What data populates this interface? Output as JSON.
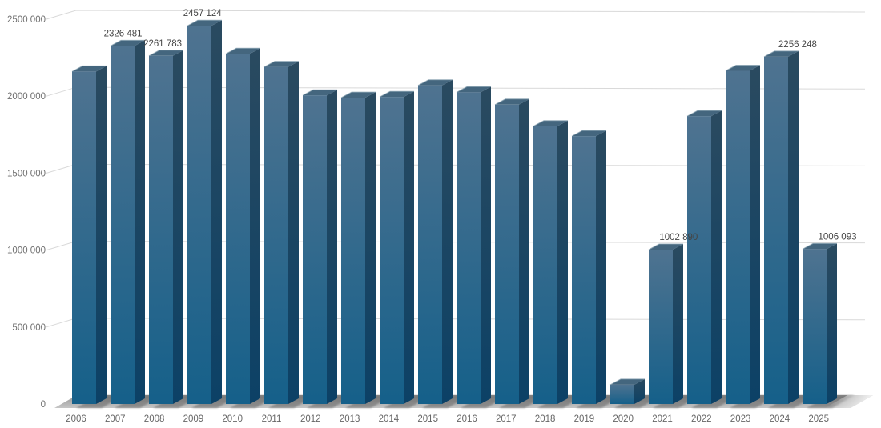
{
  "chart_data": {
    "type": "bar",
    "style": "3d-column",
    "title": "",
    "xlabel": "",
    "ylabel": "",
    "legend": "none",
    "grid": true,
    "categories": [
      "2006",
      "2007",
      "2008",
      "2009",
      "2010",
      "2011",
      "2012",
      "2013",
      "2014",
      "2015",
      "2016",
      "2017",
      "2018",
      "2019",
      "2020",
      "2021",
      "2022",
      "2023",
      "2024",
      "2025"
    ],
    "values": [
      2160000,
      2326481,
      2261783,
      2457124,
      2275000,
      2190000,
      2005000,
      1990000,
      1995000,
      2070000,
      2025000,
      1945000,
      1805000,
      1740000,
      125000,
      1002890,
      1870000,
      2165000,
      2256248,
      1006093
    ],
    "value_labels": [
      "",
      "2326 481",
      "2261 783",
      "2457 124",
      "",
      "",
      "",
      "",
      "",
      "",
      "",
      "",
      "",
      "",
      "",
      "1002 890",
      "",
      "",
      "2256 248",
      "1006 093"
    ],
    "ylim": [
      0,
      2500000
    ],
    "ytick_values": [
      0,
      500000,
      1000000,
      1500000,
      2000000,
      2500000
    ],
    "ytick_labels": [
      "0",
      "500 000",
      "1000 000",
      "1500 000",
      "2000 000",
      "2500 000"
    ],
    "colors": {
      "background": "#ffffff",
      "bar_front_top": "#4f7390",
      "bar_front_bottom": "#15608a",
      "bar_side_top": "#2a4a60",
      "bar_side_bottom": "#0c4166",
      "bar_top_face": "#44667e",
      "bar_top_edge_highlight": "#8aa2b2",
      "floor_dark": "#969696",
      "floor_light": "#c6c6c6",
      "floor_shadow": "#5a5a5a",
      "gridline": "#d9d9d9",
      "ytick_label": "#707070",
      "xtick_label": "#666666",
      "value_label": "#454545"
    }
  }
}
